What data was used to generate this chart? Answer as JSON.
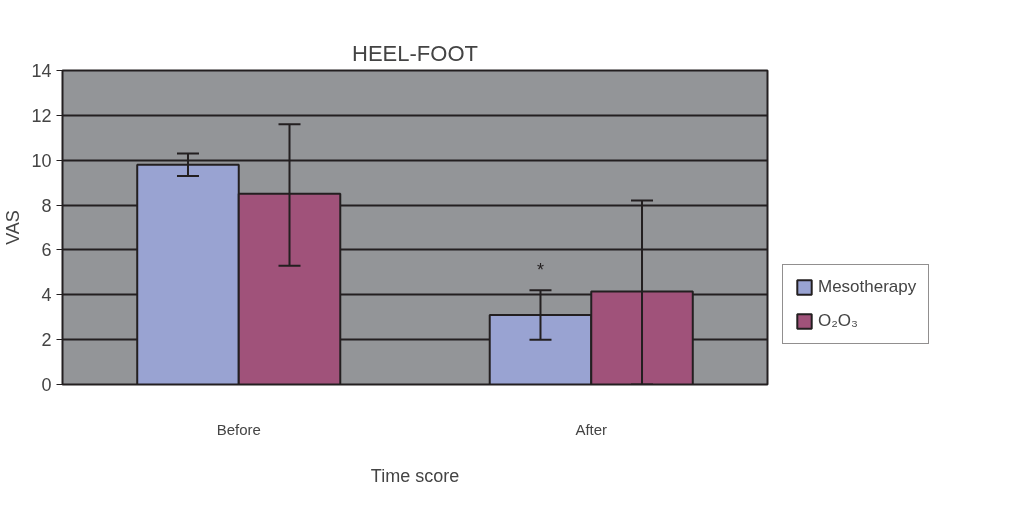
{
  "chart_data": {
    "type": "bar",
    "title": "HEEL-FOOT",
    "xlabel": "Time score",
    "ylabel": "VAS",
    "categories": [
      "Before",
      "After"
    ],
    "series": [
      {
        "name": "Mesotherapy",
        "color": "#99a3d2",
        "values": [
          9.8,
          3.1
        ],
        "errors": [
          [
            9.3,
            10.3
          ],
          [
            2.0,
            4.2
          ]
        ]
      },
      {
        "name": "O₂O₃",
        "color": "#a0527a",
        "values": [
          8.5,
          4.15
        ],
        "errors": [
          [
            5.3,
            11.6
          ],
          [
            0,
            8.2
          ]
        ]
      }
    ],
    "ylim": [
      0,
      14
    ],
    "yticks": [
      0,
      2,
      4,
      6,
      8,
      10,
      12,
      14
    ],
    "grid": "y",
    "legend": "right",
    "annotations": [
      "*"
    ]
  }
}
